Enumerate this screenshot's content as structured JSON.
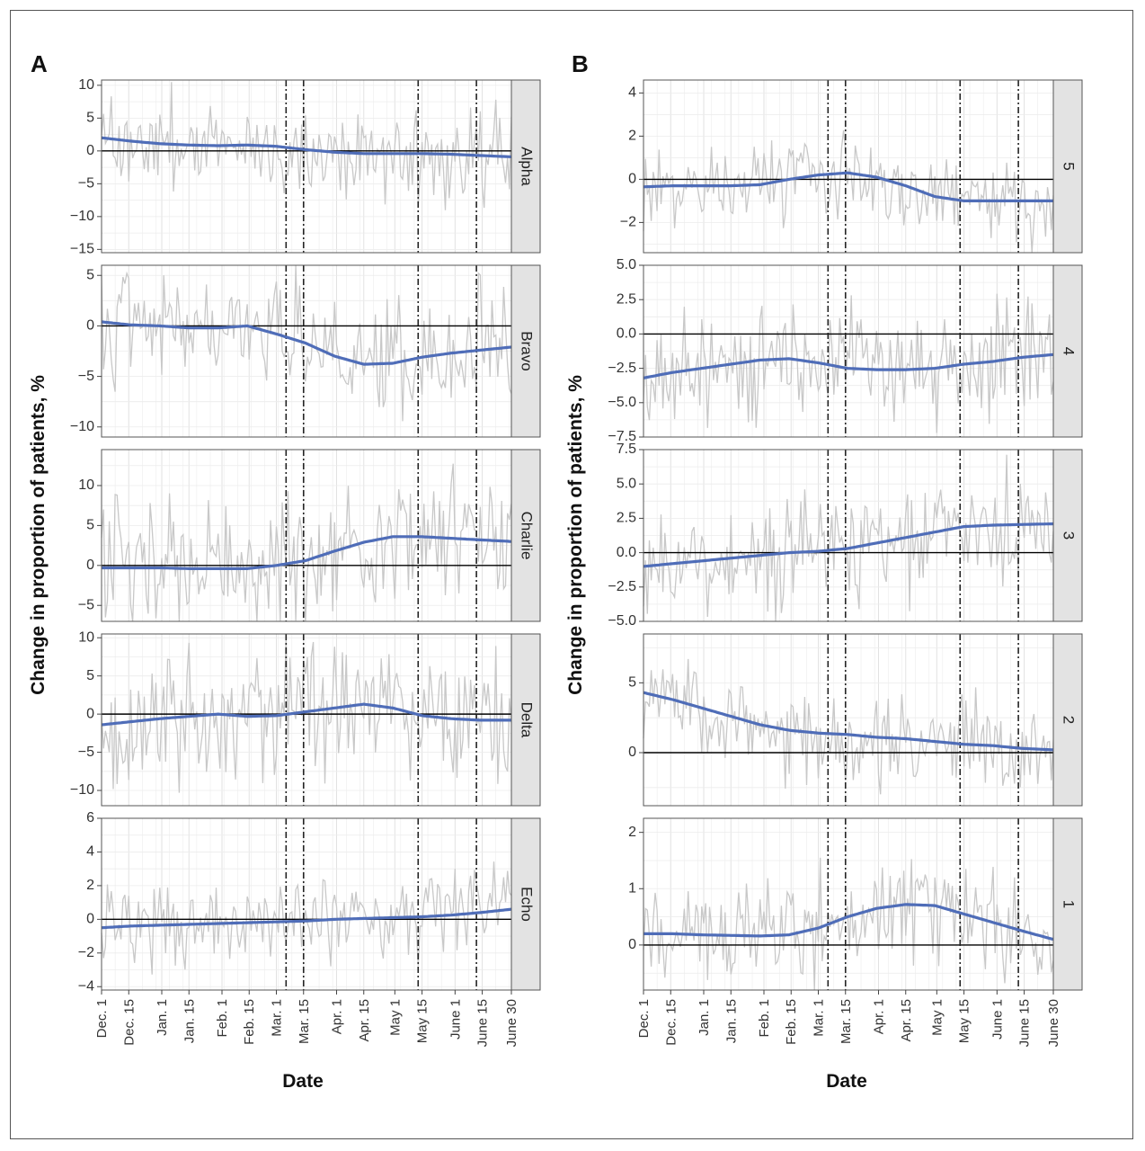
{
  "figure": {
    "panel_a_label": "A",
    "panel_b_label": "B",
    "ylabel": "Change in proportion of patients, %",
    "xlabel": "Date"
  },
  "colors": {
    "noise_line": "#c8c8c8",
    "smooth_line": "#4f6db8",
    "zero_line": "#000000",
    "event_line": "#222222",
    "strip_fill": "#e3e3e3",
    "grid": "#ececec"
  },
  "chart_data": [
    {
      "type": "line",
      "panel": "A",
      "facets": [
        {
          "label": "Alpha",
          "ylim": [
            -15.5,
            10.8
          ],
          "yticks": [
            10,
            5,
            0,
            -5,
            -10,
            -15
          ],
          "smooth": [
            [
              0,
              2.0
            ],
            [
              15,
              1.5
            ],
            [
              30,
              1.1
            ],
            [
              45,
              0.9
            ],
            [
              60,
              0.8
            ],
            [
              75,
              0.9
            ],
            [
              90,
              0.7
            ],
            [
              105,
              0.2
            ],
            [
              120,
              -0.2
            ],
            [
              135,
              -0.4
            ],
            [
              150,
              -0.4
            ],
            [
              165,
              -0.4
            ],
            [
              180,
              -0.5
            ],
            [
              195,
              -0.7
            ],
            [
              211,
              -0.9
            ]
          ],
          "noise_amplitude": 3.5
        },
        {
          "label": "Bravo",
          "ylim": [
            -11,
            6
          ],
          "yticks": [
            5,
            0,
            -5,
            -10
          ],
          "smooth": [
            [
              0,
              0.4
            ],
            [
              15,
              0.1
            ],
            [
              30,
              0.0
            ],
            [
              45,
              -0.2
            ],
            [
              60,
              -0.2
            ],
            [
              75,
              0.0
            ],
            [
              90,
              -0.8
            ],
            [
              105,
              -1.7
            ],
            [
              120,
              -3.0
            ],
            [
              135,
              -3.8
            ],
            [
              150,
              -3.7
            ],
            [
              165,
              -3.1
            ],
            [
              180,
              -2.7
            ],
            [
              195,
              -2.4
            ],
            [
              211,
              -2.1
            ]
          ],
          "noise_amplitude": 3.0
        },
        {
          "label": "Charlie",
          "ylim": [
            -7,
            14.5
          ],
          "yticks": [
            10,
            5,
            0,
            -5
          ],
          "smooth": [
            [
              0,
              -0.3
            ],
            [
              15,
              -0.3
            ],
            [
              30,
              -0.3
            ],
            [
              45,
              -0.4
            ],
            [
              60,
              -0.4
            ],
            [
              75,
              -0.4
            ],
            [
              90,
              0.0
            ],
            [
              105,
              0.6
            ],
            [
              120,
              1.8
            ],
            [
              135,
              2.9
            ],
            [
              150,
              3.6
            ],
            [
              165,
              3.6
            ],
            [
              180,
              3.4
            ],
            [
              195,
              3.2
            ],
            [
              211,
              3.0
            ]
          ],
          "noise_amplitude": 4.0
        },
        {
          "label": "Delta",
          "ylim": [
            -12,
            10.5
          ],
          "yticks": [
            10,
            5,
            0,
            -5,
            -10
          ],
          "smooth": [
            [
              0,
              -1.4
            ],
            [
              15,
              -1.0
            ],
            [
              30,
              -0.6
            ],
            [
              45,
              -0.3
            ],
            [
              60,
              0.0
            ],
            [
              75,
              -0.3
            ],
            [
              90,
              -0.2
            ],
            [
              105,
              0.3
            ],
            [
              120,
              0.8
            ],
            [
              135,
              1.3
            ],
            [
              150,
              0.8
            ],
            [
              165,
              -0.2
            ],
            [
              180,
              -0.6
            ],
            [
              195,
              -0.8
            ],
            [
              211,
              -0.8
            ]
          ],
          "noise_amplitude": 4.0
        },
        {
          "label": "Echo",
          "ylim": [
            -4.2,
            6
          ],
          "yticks": [
            6,
            4,
            2,
            0,
            -2,
            -4
          ],
          "smooth": [
            [
              0,
              -0.5
            ],
            [
              15,
              -0.4
            ],
            [
              30,
              -0.35
            ],
            [
              45,
              -0.3
            ],
            [
              60,
              -0.25
            ],
            [
              75,
              -0.2
            ],
            [
              90,
              -0.15
            ],
            [
              105,
              -0.1
            ],
            [
              120,
              0.0
            ],
            [
              135,
              0.05
            ],
            [
              150,
              0.1
            ],
            [
              165,
              0.15
            ],
            [
              180,
              0.25
            ],
            [
              195,
              0.4
            ],
            [
              211,
              0.6
            ]
          ],
          "noise_amplitude": 1.3
        }
      ]
    },
    {
      "type": "line",
      "panel": "B",
      "facets": [
        {
          "label": "5",
          "ylim": [
            -3.4,
            4.6
          ],
          "yticks": [
            4,
            2,
            0,
            -2
          ],
          "smooth": [
            [
              0,
              -0.35
            ],
            [
              15,
              -0.3
            ],
            [
              30,
              -0.3
            ],
            [
              45,
              -0.3
            ],
            [
              60,
              -0.25
            ],
            [
              75,
              0.0
            ],
            [
              90,
              0.2
            ],
            [
              105,
              0.3
            ],
            [
              120,
              0.1
            ],
            [
              135,
              -0.3
            ],
            [
              150,
              -0.8
            ],
            [
              165,
              -1.0
            ],
            [
              180,
              -1.0
            ],
            [
              195,
              -1.0
            ],
            [
              211,
              -1.0
            ]
          ],
          "noise_amplitude": 0.9
        },
        {
          "label": "4",
          "ylim": [
            -7.5,
            5.0
          ],
          "yticks": [
            5.0,
            2.5,
            0.0,
            -2.5,
            -5.0,
            -7.5
          ],
          "ytick_labels": [
            "5.0",
            "2.5",
            "0.0",
            "−2.5",
            "−5.0",
            "−7.5"
          ],
          "smooth": [
            [
              0,
              -3.2
            ],
            [
              15,
              -2.8
            ],
            [
              30,
              -2.5
            ],
            [
              45,
              -2.2
            ],
            [
              60,
              -1.9
            ],
            [
              75,
              -1.8
            ],
            [
              90,
              -2.1
            ],
            [
              105,
              -2.5
            ],
            [
              120,
              -2.6
            ],
            [
              135,
              -2.6
            ],
            [
              150,
              -2.5
            ],
            [
              165,
              -2.2
            ],
            [
              180,
              -2.0
            ],
            [
              195,
              -1.7
            ],
            [
              211,
              -1.5
            ]
          ],
          "noise_amplitude": 2.0
        },
        {
          "label": "3",
          "ylim": [
            -5.0,
            7.5
          ],
          "yticks": [
            7.5,
            5.0,
            2.5,
            0.0,
            -2.5,
            -5.0
          ],
          "ytick_labels": [
            "7.5",
            "5.0",
            "2.5",
            "0.0",
            "−2.5",
            "−5.0"
          ],
          "smooth": [
            [
              0,
              -1.0
            ],
            [
              15,
              -0.8
            ],
            [
              30,
              -0.6
            ],
            [
              45,
              -0.4
            ],
            [
              60,
              -0.2
            ],
            [
              75,
              0.0
            ],
            [
              90,
              0.1
            ],
            [
              105,
              0.3
            ],
            [
              120,
              0.7
            ],
            [
              135,
              1.1
            ],
            [
              150,
              1.5
            ],
            [
              165,
              1.9
            ],
            [
              180,
              2.0
            ],
            [
              195,
              2.05
            ],
            [
              211,
              2.1
            ]
          ],
          "noise_amplitude": 2.0
        },
        {
          "label": "2",
          "ylim": [
            -3.8,
            8.5
          ],
          "yticks": [
            5,
            0
          ],
          "smooth": [
            [
              0,
              4.3
            ],
            [
              15,
              3.8
            ],
            [
              30,
              3.2
            ],
            [
              45,
              2.6
            ],
            [
              60,
              2.0
            ],
            [
              75,
              1.6
            ],
            [
              90,
              1.4
            ],
            [
              105,
              1.3
            ],
            [
              120,
              1.1
            ],
            [
              135,
              1.0
            ],
            [
              150,
              0.8
            ],
            [
              165,
              0.6
            ],
            [
              180,
              0.5
            ],
            [
              195,
              0.3
            ],
            [
              211,
              0.2
            ]
          ],
          "noise_amplitude": 1.6
        },
        {
          "label": "1",
          "ylim": [
            -0.8,
            2.25
          ],
          "yticks": [
            2,
            1,
            0
          ],
          "smooth": [
            [
              0,
              0.2
            ],
            [
              15,
              0.2
            ],
            [
              30,
              0.18
            ],
            [
              45,
              0.17
            ],
            [
              60,
              0.16
            ],
            [
              75,
              0.18
            ],
            [
              90,
              0.3
            ],
            [
              105,
              0.5
            ],
            [
              120,
              0.65
            ],
            [
              135,
              0.72
            ],
            [
              150,
              0.7
            ],
            [
              165,
              0.55
            ],
            [
              180,
              0.4
            ],
            [
              195,
              0.25
            ],
            [
              211,
              0.1
            ]
          ],
          "noise_amplitude": 0.45
        }
      ]
    }
  ],
  "x_axis": {
    "day_range": [
      0,
      211
    ],
    "tick_days": [
      0,
      14,
      31,
      45,
      62,
      76,
      90,
      104,
      121,
      135,
      151,
      165,
      182,
      196,
      211
    ],
    "tick_labels": [
      "Dec. 1",
      "Dec. 15",
      "Jan. 1",
      "Jan. 15",
      "Feb. 1",
      "Feb. 15",
      "Mar. 1",
      "Mar. 15",
      "Apr. 1",
      "Apr. 15",
      "May 1",
      "May 15",
      "June 1",
      "June 15",
      "June 30"
    ],
    "event_days": [
      95,
      104,
      163,
      193
    ]
  }
}
